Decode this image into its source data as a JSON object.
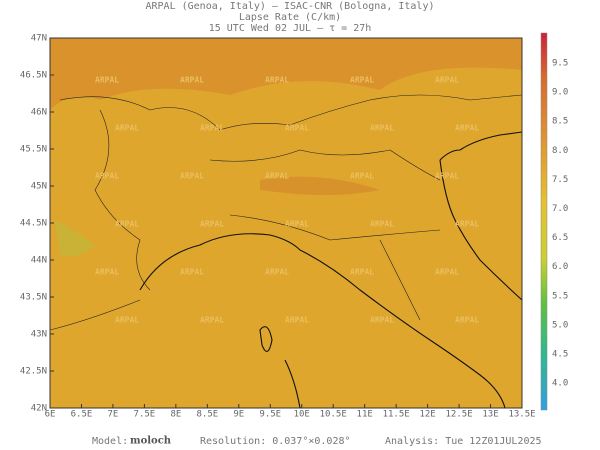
{
  "header": {
    "line1": "ARPAL (Genoa, Italy)  –  ISAC-CNR (Bologna, Italy)",
    "line2": "Lapse Rate (C/km)",
    "line3": "15 UTC Wed 02 JUL  –  τ = 27h"
  },
  "map": {
    "lat_labels": [
      "47N",
      "46.5N",
      "46N",
      "45.5N",
      "45N",
      "44.5N",
      "44N",
      "43.5N",
      "43N",
      "42.5N",
      "42N"
    ],
    "lon_labels": [
      "6E",
      "6.5E",
      "7E",
      "7.5E",
      "8E",
      "8.5E",
      "9E",
      "9.5E",
      "10E",
      "10.5E",
      "11E",
      "11.5E",
      "12E",
      "12.5E",
      "13E",
      "13.5E"
    ],
    "watermark": "ARPAL"
  },
  "colorbar": {
    "labels": [
      "9.5",
      "9.0",
      "8.5",
      "8.0",
      "7.5",
      "7.0",
      "6.5",
      "6.0",
      "5.5",
      "5.0",
      "4.5",
      "4.0"
    ]
  },
  "footer": {
    "model_label": "Model:",
    "model": "moloch",
    "resolution": "Resolution: 0.037°×0.028°",
    "analysis": "Analysis: Tue 12Z01JUL2025"
  }
}
